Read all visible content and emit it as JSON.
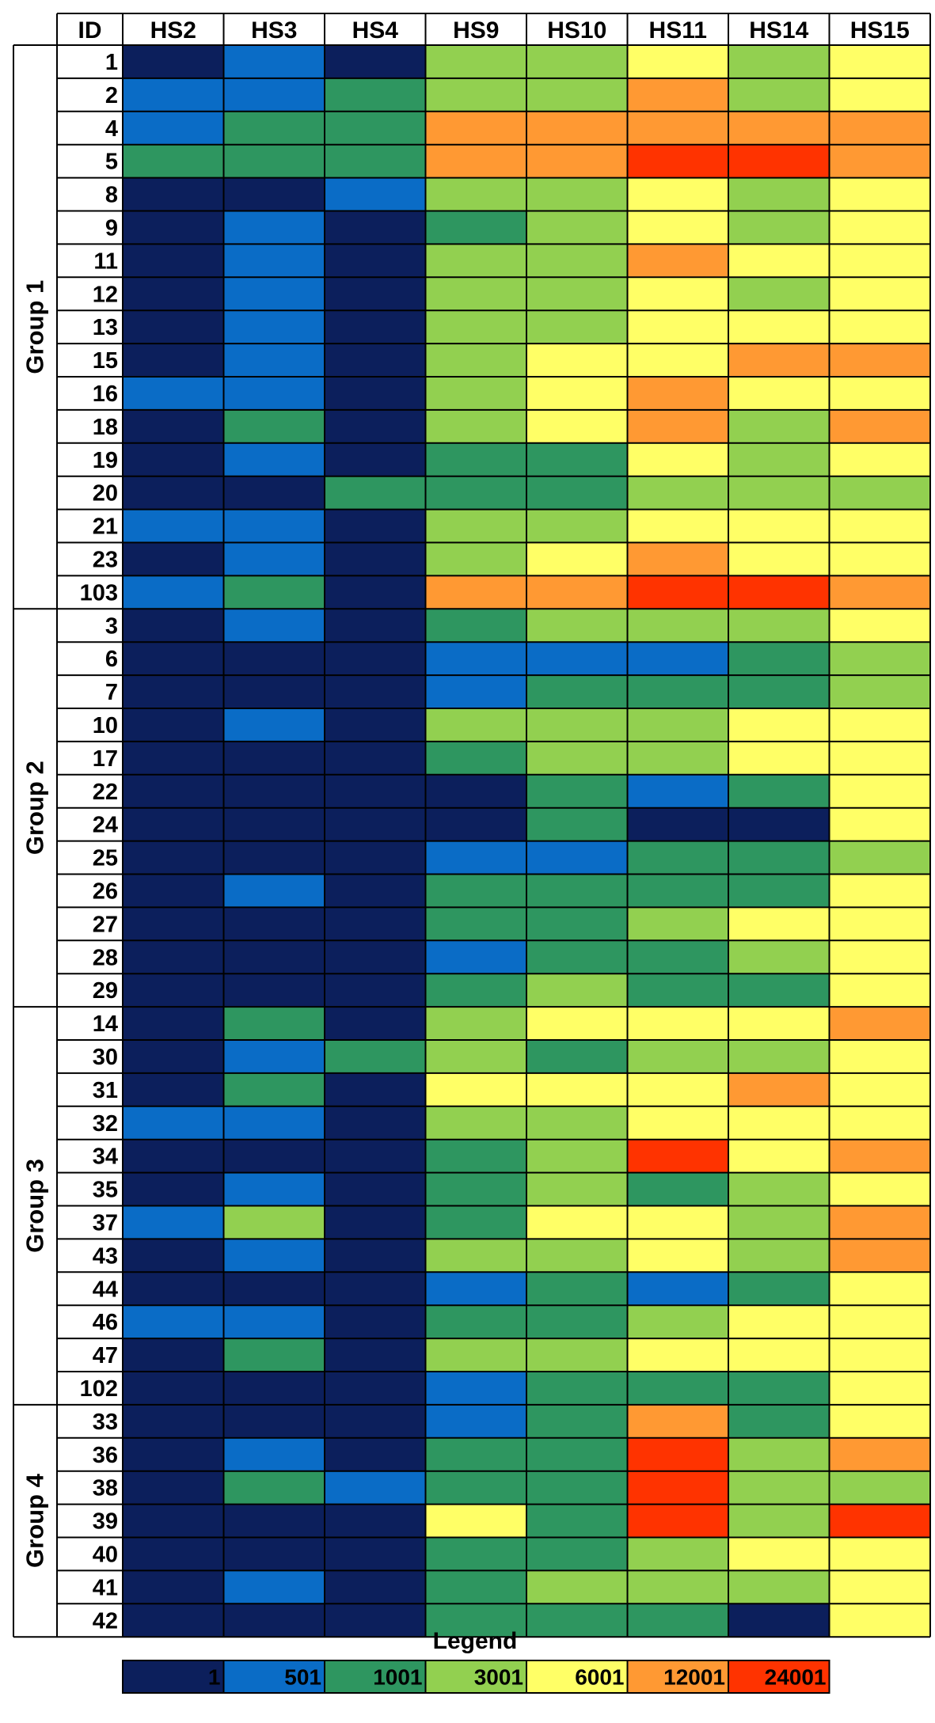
{
  "chart_data": {
    "type": "heatmap",
    "id_header": "ID",
    "columns": [
      "HS2",
      "HS3",
      "HS4",
      "HS9",
      "HS10",
      "HS11",
      "HS14",
      "HS15"
    ],
    "groups": [
      {
        "label": "Group 1",
        "rows": [
          {
            "id": "1",
            "levels": [
              0,
              1,
              0,
              3,
              3,
              4,
              3,
              4
            ]
          },
          {
            "id": "2",
            "levels": [
              1,
              1,
              2,
              3,
              3,
              5,
              3,
              4
            ]
          },
          {
            "id": "4",
            "levels": [
              1,
              2,
              2,
              5,
              5,
              5,
              5,
              5
            ]
          },
          {
            "id": "5",
            "levels": [
              2,
              2,
              2,
              5,
              5,
              6,
              6,
              5
            ]
          },
          {
            "id": "8",
            "levels": [
              0,
              0,
              1,
              3,
              3,
              4,
              3,
              4
            ]
          },
          {
            "id": "9",
            "levels": [
              0,
              1,
              0,
              2,
              3,
              4,
              3,
              4
            ]
          },
          {
            "id": "11",
            "levels": [
              0,
              1,
              0,
              3,
              3,
              5,
              4,
              4
            ]
          },
          {
            "id": "12",
            "levels": [
              0,
              1,
              0,
              3,
              3,
              4,
              3,
              4
            ]
          },
          {
            "id": "13",
            "levels": [
              0,
              1,
              0,
              3,
              3,
              4,
              4,
              4
            ]
          },
          {
            "id": "15",
            "levels": [
              0,
              1,
              0,
              3,
              4,
              4,
              5,
              5
            ]
          },
          {
            "id": "16",
            "levels": [
              1,
              1,
              0,
              3,
              4,
              5,
              4,
              4
            ]
          },
          {
            "id": "18",
            "levels": [
              0,
              2,
              0,
              3,
              4,
              5,
              3,
              5
            ]
          },
          {
            "id": "19",
            "levels": [
              0,
              1,
              0,
              2,
              2,
              4,
              3,
              4
            ]
          },
          {
            "id": "20",
            "levels": [
              0,
              0,
              2,
              2,
              2,
              3,
              3,
              3
            ]
          },
          {
            "id": "21",
            "levels": [
              1,
              1,
              0,
              3,
              3,
              4,
              4,
              4
            ]
          },
          {
            "id": "23",
            "levels": [
              0,
              1,
              0,
              3,
              4,
              5,
              4,
              4
            ]
          },
          {
            "id": "103",
            "levels": [
              1,
              2,
              0,
              5,
              5,
              6,
              6,
              5
            ]
          }
        ]
      },
      {
        "label": "Group 2",
        "rows": [
          {
            "id": "3",
            "levels": [
              0,
              1,
              0,
              2,
              3,
              3,
              3,
              4
            ]
          },
          {
            "id": "6",
            "levels": [
              0,
              0,
              0,
              1,
              1,
              1,
              2,
              3
            ]
          },
          {
            "id": "7",
            "levels": [
              0,
              0,
              0,
              1,
              2,
              2,
              2,
              3
            ]
          },
          {
            "id": "10",
            "levels": [
              0,
              1,
              0,
              3,
              3,
              3,
              4,
              4
            ]
          },
          {
            "id": "17",
            "levels": [
              0,
              0,
              0,
              2,
              3,
              3,
              4,
              4
            ]
          },
          {
            "id": "22",
            "levels": [
              0,
              0,
              0,
              0,
              2,
              1,
              2,
              4
            ]
          },
          {
            "id": "24",
            "levels": [
              0,
              0,
              0,
              0,
              2,
              0,
              0,
              4
            ]
          },
          {
            "id": "25",
            "levels": [
              0,
              0,
              0,
              1,
              1,
              2,
              2,
              3
            ]
          },
          {
            "id": "26",
            "levels": [
              0,
              1,
              0,
              2,
              2,
              2,
              2,
              4
            ]
          },
          {
            "id": "27",
            "levels": [
              0,
              0,
              0,
              2,
              2,
              3,
              4,
              4
            ]
          },
          {
            "id": "28",
            "levels": [
              0,
              0,
              0,
              1,
              2,
              2,
              3,
              4
            ]
          },
          {
            "id": "29",
            "levels": [
              0,
              0,
              0,
              2,
              3,
              2,
              2,
              4
            ]
          }
        ]
      },
      {
        "label": "Group 3",
        "rows": [
          {
            "id": "14",
            "levels": [
              0,
              2,
              0,
              3,
              4,
              4,
              4,
              5
            ]
          },
          {
            "id": "30",
            "levels": [
              0,
              1,
              2,
              3,
              2,
              3,
              3,
              4
            ]
          },
          {
            "id": "31",
            "levels": [
              0,
              2,
              0,
              4,
              4,
              4,
              5,
              4
            ]
          },
          {
            "id": "32",
            "levels": [
              1,
              1,
              0,
              3,
              3,
              4,
              4,
              4
            ]
          },
          {
            "id": "34",
            "levels": [
              0,
              0,
              0,
              2,
              3,
              6,
              4,
              5
            ]
          },
          {
            "id": "35",
            "levels": [
              0,
              1,
              0,
              2,
              3,
              2,
              3,
              4
            ]
          },
          {
            "id": "37",
            "levels": [
              1,
              3,
              0,
              2,
              4,
              4,
              3,
              5
            ]
          },
          {
            "id": "43",
            "levels": [
              0,
              1,
              0,
              3,
              3,
              4,
              3,
              5
            ]
          },
          {
            "id": "44",
            "levels": [
              0,
              0,
              0,
              1,
              2,
              1,
              2,
              4
            ]
          },
          {
            "id": "46",
            "levels": [
              1,
              1,
              0,
              2,
              2,
              3,
              4,
              4
            ]
          },
          {
            "id": "47",
            "levels": [
              0,
              2,
              0,
              3,
              3,
              4,
              4,
              4
            ]
          },
          {
            "id": "102",
            "levels": [
              0,
              0,
              0,
              1,
              2,
              2,
              2,
              4
            ]
          }
        ]
      },
      {
        "label": "Group 4",
        "rows": [
          {
            "id": "33",
            "levels": [
              0,
              0,
              0,
              1,
              2,
              5,
              2,
              4
            ]
          },
          {
            "id": "36",
            "levels": [
              0,
              1,
              0,
              2,
              2,
              6,
              3,
              5
            ]
          },
          {
            "id": "38",
            "levels": [
              0,
              2,
              1,
              2,
              2,
              6,
              3,
              3
            ]
          },
          {
            "id": "39",
            "levels": [
              0,
              0,
              0,
              4,
              2,
              6,
              3,
              6
            ]
          },
          {
            "id": "40",
            "levels": [
              0,
              0,
              0,
              2,
              2,
              3,
              4,
              4
            ]
          },
          {
            "id": "41",
            "levels": [
              0,
              1,
              0,
              2,
              3,
              3,
              3,
              4
            ]
          },
          {
            "id": "42",
            "levels": [
              0,
              0,
              0,
              2,
              2,
              2,
              0,
              4
            ]
          }
        ]
      }
    ],
    "legend": {
      "title": "Legend",
      "bins": [
        {
          "label": "1",
          "color": "#0c1f5c"
        },
        {
          "label": "501",
          "color": "#0a6cc6"
        },
        {
          "label": "1001",
          "color": "#2e9660"
        },
        {
          "label": "3001",
          "color": "#92d050"
        },
        {
          "label": "6001",
          "color": "#ffff66"
        },
        {
          "label": "12001",
          "color": "#ff9933"
        },
        {
          "label": "24001",
          "color": "#ff3300"
        }
      ]
    }
  }
}
